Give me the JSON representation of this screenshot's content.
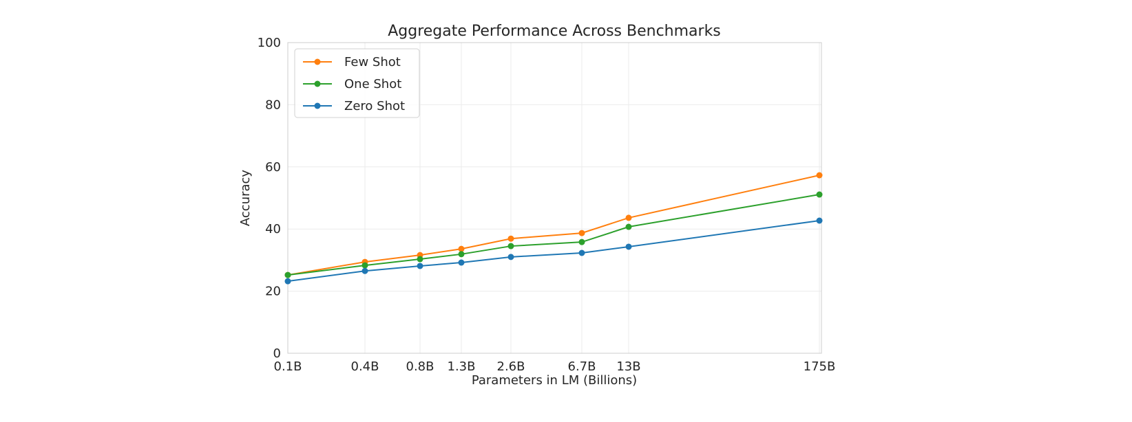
{
  "chart_data": {
    "type": "line",
    "title": "Aggregate Performance Across Benchmarks",
    "xlabel": "Parameters in LM (Billions)",
    "ylabel": "Accuracy",
    "ylim": [
      0,
      100
    ],
    "yticks": [
      "0",
      "20",
      "40",
      "60",
      "80",
      "100"
    ],
    "categories": [
      "0.1B",
      "0.4B",
      "0.8B",
      "1.3B",
      "2.6B",
      "6.7B",
      "13B",
      "175B"
    ],
    "grid": true,
    "legend_position": "top-left",
    "series": [
      {
        "name": "Few Shot",
        "color": "#ff7f0e",
        "values": [
          25.2,
          29.4,
          31.6,
          33.6,
          36.9,
          38.7,
          43.6,
          57.3
        ]
      },
      {
        "name": "One Shot",
        "color": "#2ca02c",
        "values": [
          25.2,
          28.3,
          30.3,
          31.9,
          34.5,
          35.8,
          40.7,
          51.1
        ]
      },
      {
        "name": "Zero Shot",
        "color": "#1f77b4",
        "values": [
          23.2,
          26.5,
          28.1,
          29.2,
          31.0,
          32.3,
          34.3,
          42.7
        ]
      }
    ]
  }
}
